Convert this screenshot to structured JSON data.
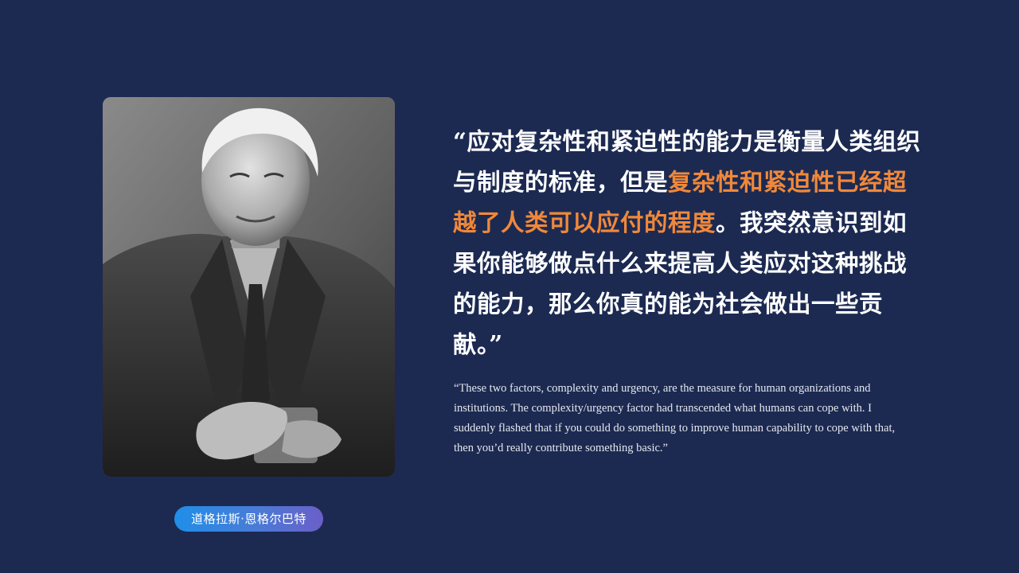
{
  "portrait": {
    "icon": "person-portrait-photo"
  },
  "person": {
    "name": "道格拉斯·恩格尔巴特"
  },
  "quote_cn": {
    "before": "“应对复杂性和紧迫性的能力是衡量人类组织与制度的标准，但是",
    "highlight": "复杂性和紧迫性已经超越了人类可以应付的程度",
    "after": "。我突然意识到如果你能够做点什么来提高人类应对这种挑战的能力，那么你真的能为社会做出一些贡献。”"
  },
  "quote_en": {
    "text": "“These two factors, complexity and urgency, are the measure for human organizations and institutions. The complexity/urgency factor had transcended what humans can cope with. I suddenly flashed that if you could do something to improve human capability to cope with that, then you’d really contribute something basic.”"
  },
  "colors": {
    "background": "#1c2a52",
    "highlight": "#f0883a",
    "text": "#ffffff"
  }
}
